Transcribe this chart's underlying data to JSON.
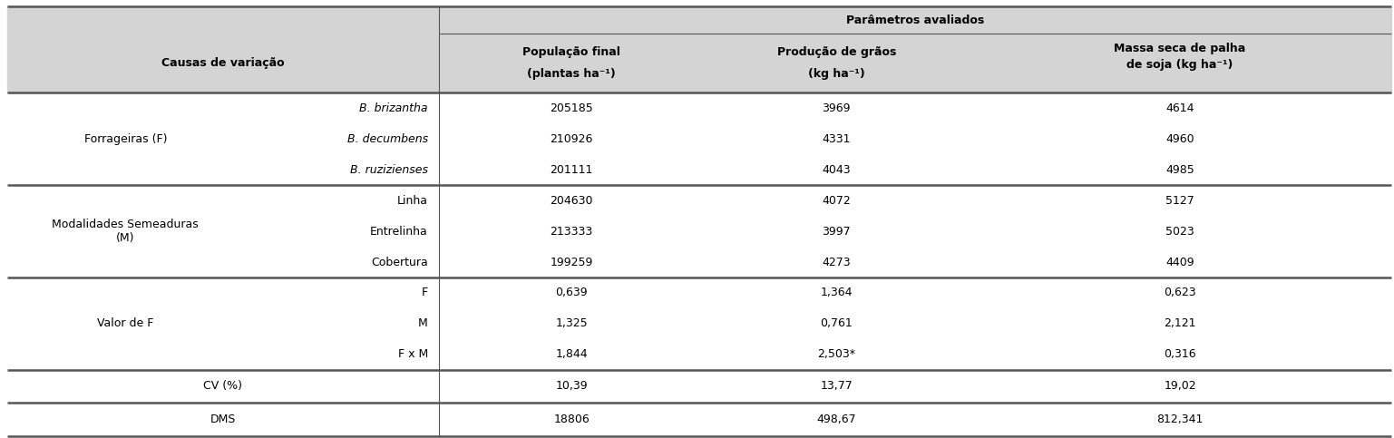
{
  "header_bg": "#d4d4d4",
  "white_bg": "#ffffff",
  "figsize": [
    15.37,
    4.83
  ],
  "dpi": 100,
  "top_header": "Parâmetros avaliados",
  "col1_header": "Causas de variação",
  "col_headers_line1": [
    "População final",
    "Produção de grãos",
    "Massa seca de palha"
  ],
  "col_headers_line2": [
    "(plantas ha",
    "(kg ha",
    "de soja (kg ha"
  ],
  "sections": [
    {
      "label": "Forrageiras (F)",
      "subrows": [
        {
          "sub": "B. brizantha",
          "v1": "205185",
          "v2": "3969",
          "v3": "4614"
        },
        {
          "sub": "B. decumbens",
          "v1": "210926",
          "v2": "4331",
          "v3": "4960"
        },
        {
          "sub": "B. ruzizienses",
          "v1": "201111",
          "v2": "4043",
          "v3": "4985"
        }
      ]
    },
    {
      "label": "Modalidades Semeaduras\n(M)",
      "subrows": [
        {
          "sub": "Linha",
          "v1": "204630",
          "v2": "4072",
          "v3": "5127"
        },
        {
          "sub": "Entrelinha",
          "v1": "213333",
          "v2": "3997",
          "v3": "5023"
        },
        {
          "sub": "Cobertura",
          "v1": "199259",
          "v2": "4273",
          "v3": "4409"
        }
      ]
    },
    {
      "label": "Valor de F",
      "subrows": [
        {
          "sub": "F",
          "v1": "0,639",
          "v2": "1,364",
          "v3": "0,623"
        },
        {
          "sub": "M",
          "v1": "1,325",
          "v2": "0,761",
          "v3": "2,121"
        },
        {
          "sub": "F x M",
          "v1": "1,844",
          "v2": "2,503*",
          "v3": "0,316"
        }
      ]
    }
  ],
  "single_rows": [
    {
      "label": "CV (%)",
      "v1": "10,39",
      "v2": "13,77",
      "v3": "19,02"
    },
    {
      "label": "DMS",
      "v1": "18806",
      "v2": "498,67",
      "v3": "812,341"
    }
  ],
  "line_color": "#555555",
  "thick_lw": 1.8,
  "thin_lw": 0.8
}
